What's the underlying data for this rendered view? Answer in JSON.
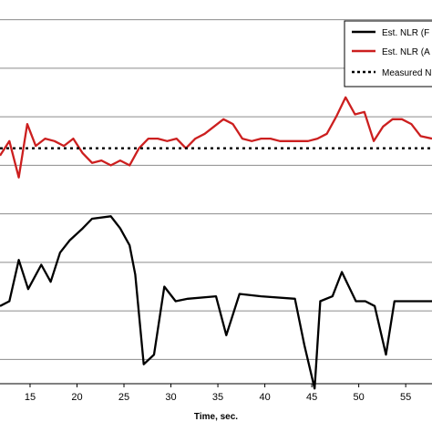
{
  "chart_data": {
    "type": "line",
    "xlabel": "Time, sec.",
    "ylabel": "",
    "x_ticks": [
      "15",
      "20",
      "25",
      "30",
      "35",
      "40",
      "45",
      "50",
      "55"
    ],
    "xlim": [
      11.8,
      57.8
    ],
    "ylim": [
      -0.5,
      7.5
    ],
    "grid": "horizontal",
    "legend_position": "top-right",
    "legend": [
      {
        "label": "Est. NLR (F",
        "style": "solid",
        "color": "#000000"
      },
      {
        "label": "Est. NLR (A",
        "style": "solid",
        "color": "#cc1f1f"
      },
      {
        "label": "Measured N",
        "style": "dotted",
        "color": "#000000"
      }
    ],
    "series": [
      {
        "name": "Est. NLR (F",
        "color": "#000000",
        "x": [
          11.8,
          12.8,
          13.8,
          14.8,
          16.2,
          17.2,
          18.2,
          19.2,
          20.6,
          21.6,
          23.6,
          24.6,
          25.6,
          26.2,
          27.1,
          28.2,
          29.3,
          30.5,
          31.8,
          34.8,
          35.9,
          37.3,
          39.6,
          43.2,
          44.2,
          45.3,
          45.9,
          47.2,
          48.2,
          49.7,
          50.7,
          51.7,
          52.9,
          53.8,
          54.9,
          57.8
        ],
        "y": [
          1.1,
          1.2,
          2.05,
          1.45,
          1.95,
          1.6,
          2.2,
          2.45,
          2.7,
          2.9,
          2.95,
          2.7,
          2.35,
          1.75,
          -0.1,
          0.1,
          1.5,
          1.2,
          1.25,
          1.3,
          0.5,
          1.35,
          1.3,
          1.25,
          0.3,
          -0.6,
          1.2,
          1.3,
          1.8,
          1.2,
          1.2,
          1.1,
          0.1,
          1.2,
          1.2,
          1.2
        ]
      },
      {
        "name": "Est. NLR (A",
        "color": "#cc1f1f",
        "x": [
          11.8,
          12.8,
          13.8,
          14.7,
          15.6,
          16.6,
          17.6,
          18.6,
          19.6,
          20.6,
          21.6,
          22.6,
          23.6,
          24.6,
          25.6,
          26.6,
          27.6,
          28.6,
          29.6,
          30.6,
          31.6,
          32.6,
          33.6,
          34.6,
          35.6,
          36.6,
          37.6,
          38.6,
          39.6,
          40.6,
          41.6,
          42.6,
          43.6,
          44.6,
          45.6,
          46.6,
          47.6,
          48.6,
          49.6,
          50.6,
          51.6,
          52.6,
          53.6,
          54.6,
          55.6,
          56.6,
          57.8
        ],
        "y": [
          4.2,
          4.5,
          3.75,
          4.85,
          4.4,
          4.55,
          4.5,
          4.4,
          4.55,
          4.25,
          4.05,
          4.1,
          4.0,
          4.1,
          4.0,
          4.35,
          4.55,
          4.55,
          4.5,
          4.55,
          4.35,
          4.55,
          4.65,
          4.8,
          4.95,
          4.85,
          4.55,
          4.5,
          4.55,
          4.55,
          4.5,
          4.5,
          4.5,
          4.5,
          4.55,
          4.65,
          5.0,
          5.4,
          5.05,
          5.1,
          4.5,
          4.8,
          4.95,
          4.95,
          4.85,
          4.6,
          4.55
        ]
      },
      {
        "name": "Measured N",
        "color": "#000000",
        "x": [
          11.8,
          57.8
        ],
        "y": [
          4.35,
          4.35
        ]
      }
    ]
  }
}
